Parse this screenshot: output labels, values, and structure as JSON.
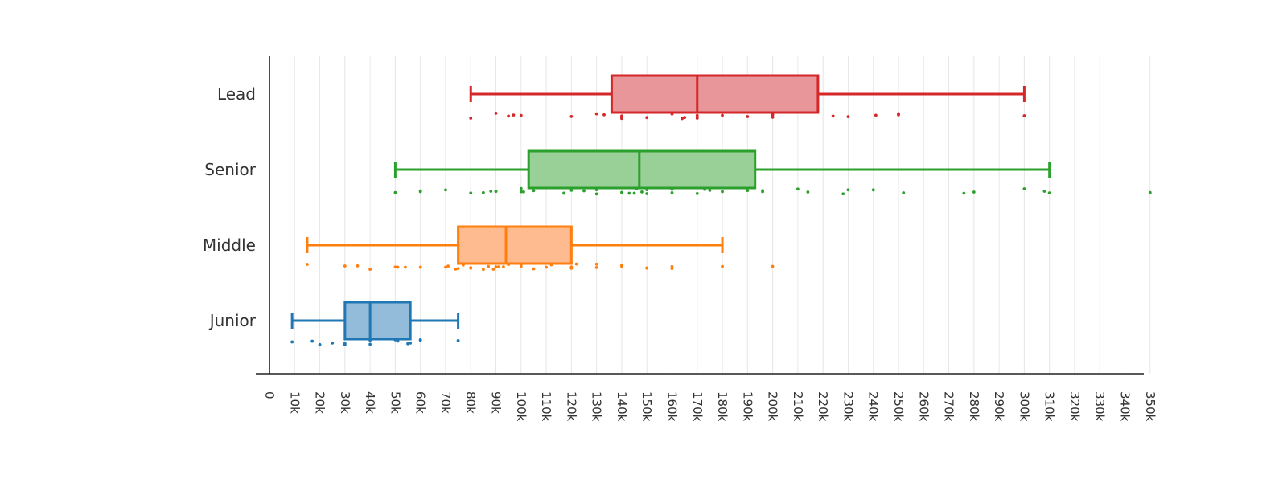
{
  "chart_data": {
    "type": "box",
    "orientation": "horizontal",
    "xlim": [
      0,
      350000
    ],
    "x_ticks": [
      {
        "value": 0,
        "label": "0"
      },
      {
        "value": 10000,
        "label": "10k"
      },
      {
        "value": 20000,
        "label": "20k"
      },
      {
        "value": 30000,
        "label": "30k"
      },
      {
        "value": 40000,
        "label": "40k"
      },
      {
        "value": 50000,
        "label": "50k"
      },
      {
        "value": 60000,
        "label": "60k"
      },
      {
        "value": 70000,
        "label": "70k"
      },
      {
        "value": 80000,
        "label": "80k"
      },
      {
        "value": 90000,
        "label": "90k"
      },
      {
        "value": 100000,
        "label": "100k"
      },
      {
        "value": 110000,
        "label": "110k"
      },
      {
        "value": 120000,
        "label": "120k"
      },
      {
        "value": 130000,
        "label": "130k"
      },
      {
        "value": 140000,
        "label": "140k"
      },
      {
        "value": 150000,
        "label": "150k"
      },
      {
        "value": 160000,
        "label": "160k"
      },
      {
        "value": 170000,
        "label": "170k"
      },
      {
        "value": 180000,
        "label": "180k"
      },
      {
        "value": 190000,
        "label": "190k"
      },
      {
        "value": 200000,
        "label": "200k"
      },
      {
        "value": 210000,
        "label": "210k"
      },
      {
        "value": 220000,
        "label": "220k"
      },
      {
        "value": 230000,
        "label": "230k"
      },
      {
        "value": 240000,
        "label": "240k"
      },
      {
        "value": 250000,
        "label": "250k"
      },
      {
        "value": 260000,
        "label": "260k"
      },
      {
        "value": 270000,
        "label": "270k"
      },
      {
        "value": 280000,
        "label": "280k"
      },
      {
        "value": 290000,
        "label": "290k"
      },
      {
        "value": 300000,
        "label": "300k"
      },
      {
        "value": 310000,
        "label": "310k"
      },
      {
        "value": 320000,
        "label": "320k"
      },
      {
        "value": 330000,
        "label": "330k"
      },
      {
        "value": 340000,
        "label": "340k"
      },
      {
        "value": 350000,
        "label": "350k"
      }
    ],
    "grid": true,
    "legend": false,
    "title": "",
    "xlabel": "",
    "ylabel": "",
    "categories": [
      "Lead",
      "Senior",
      "Middle",
      "Junior"
    ],
    "series": [
      {
        "category": "Lead",
        "color": "#d62728",
        "fill": "#e8969a",
        "whisker_low": 80000,
        "q1": 136000,
        "median": 170000,
        "q3": 218000,
        "whisker_high": 300000,
        "points": [
          80000,
          90000,
          95000,
          97000,
          100000,
          120000,
          130000,
          133000,
          140000,
          140000,
          150000,
          160000,
          164000,
          165000,
          170000,
          170000,
          180000,
          190000,
          200000,
          200000,
          224000,
          230000,
          241000,
          250000,
          250000,
          300000
        ]
      },
      {
        "category": "Senior",
        "color": "#2ca02c",
        "fill": "#98d097",
        "whisker_low": 50000,
        "q1": 103000,
        "median": 147000,
        "q3": 193000,
        "whisker_high": 310000,
        "points": [
          50000,
          60000,
          60000,
          70000,
          80000,
          85000,
          88000,
          90000,
          90000,
          100000,
          100000,
          101000,
          105000,
          117000,
          120000,
          125000,
          130000,
          130000,
          140000,
          143000,
          145000,
          146000,
          148000,
          150000,
          150000,
          160000,
          160000,
          170000,
          173000,
          175000,
          180000,
          190000,
          196000,
          196000,
          210000,
          214000,
          228000,
          230000,
          240000,
          252000,
          276000,
          280000,
          300000,
          308000,
          310000,
          350000
        ]
      },
      {
        "category": "Middle",
        "color": "#ff7f0e",
        "fill": "#fdbb8f",
        "whisker_low": 15000,
        "q1": 75000,
        "median": 94000,
        "q3": 120000,
        "whisker_high": 180000,
        "points": [
          15000,
          30000,
          35000,
          40000,
          50000,
          51000,
          54000,
          60000,
          70000,
          71000,
          74000,
          75000,
          77000,
          80000,
          80000,
          85000,
          87000,
          89000,
          90000,
          91000,
          93000,
          95000,
          100000,
          100000,
          105000,
          110000,
          112000,
          120000,
          120000,
          122000,
          130000,
          130000,
          140000,
          140000,
          150000,
          150000,
          160000,
          160000,
          180000,
          200000
        ]
      },
      {
        "category": "Junior",
        "color": "#1f77b4",
        "fill": "#93bcdb",
        "whisker_low": 9000,
        "q1": 30000,
        "median": 40000,
        "q3": 56000,
        "whisker_high": 75000,
        "points": [
          9000,
          17000,
          20000,
          25000,
          30000,
          30000,
          40000,
          40000,
          50000,
          51000,
          55000,
          56000,
          60000,
          60000,
          75000
        ]
      }
    ]
  }
}
